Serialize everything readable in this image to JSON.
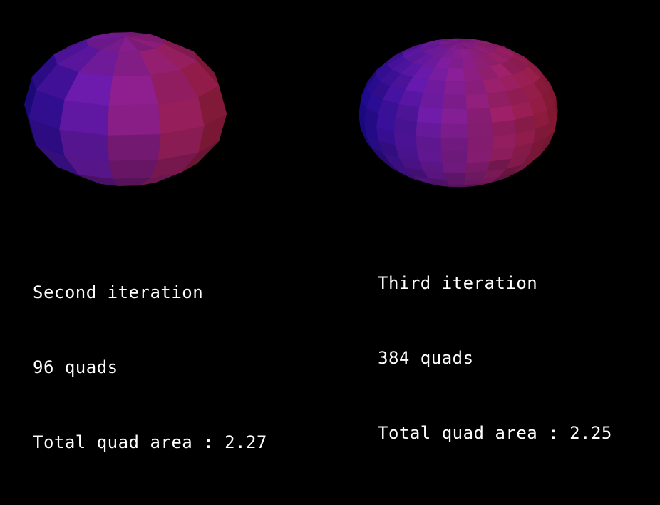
{
  "colors": {
    "background": "#000000",
    "text": "#ffffff",
    "shade_blue": "#1c0aa0",
    "shade_purple": "#6a1aa8",
    "shade_magenta": "#9a2070",
    "shade_red": "#a11e38"
  },
  "panels": [
    {
      "id": "second",
      "title": "Second iteration",
      "quads": "96 quads",
      "area": "Total quad area : 2.27"
    },
    {
      "id": "third",
      "title": "Third iteration",
      "quads": "384 quads",
      "area": "Total quad area : 2.25"
    }
  ]
}
